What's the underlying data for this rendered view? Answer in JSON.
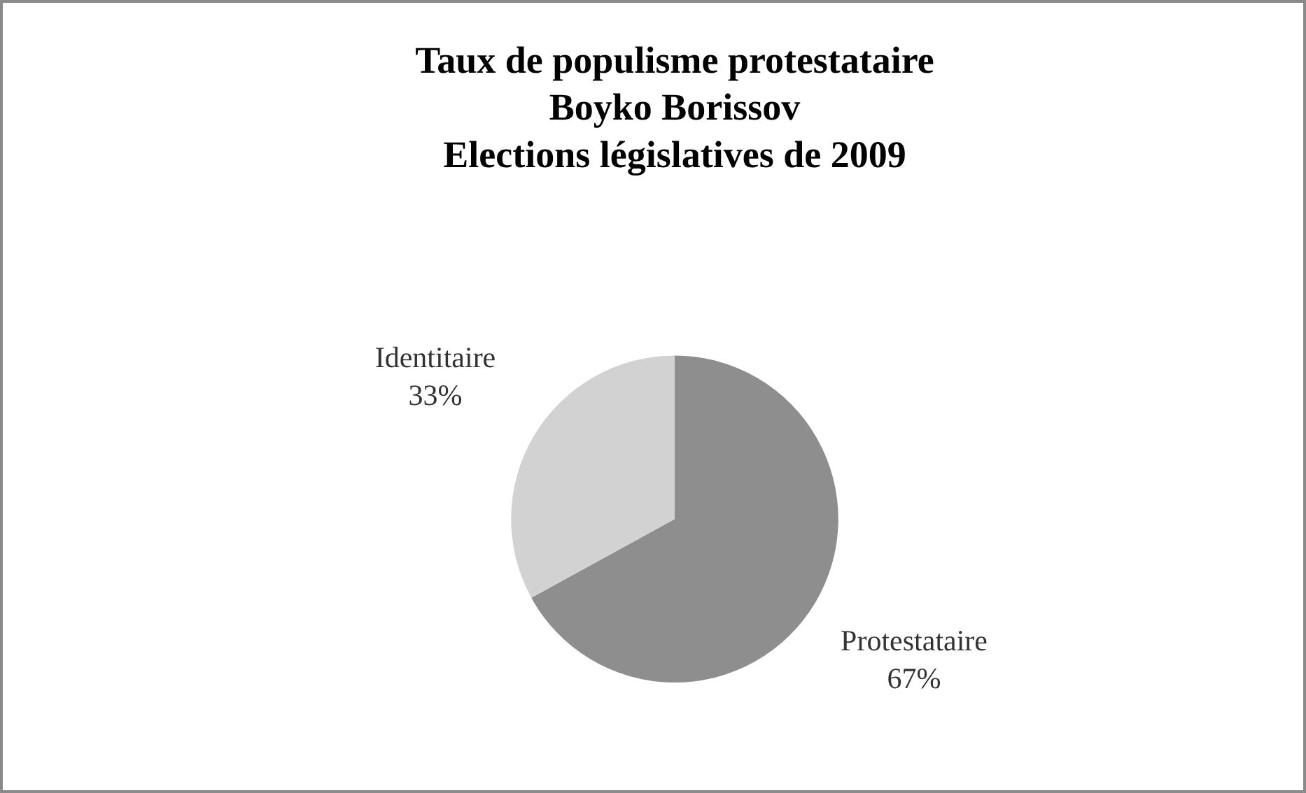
{
  "chart_data": {
    "type": "pie",
    "title": "Taux de populisme protestataire\nBoyko Borissov\nElections législatives de 2009",
    "categories": [
      "Protestataire",
      "Identitaire"
    ],
    "values": [
      67,
      33
    ],
    "value_labels": [
      "67%",
      "33%"
    ],
    "colors": [
      "#8e8e8e",
      "#d2d2d2"
    ],
    "legend": false
  }
}
